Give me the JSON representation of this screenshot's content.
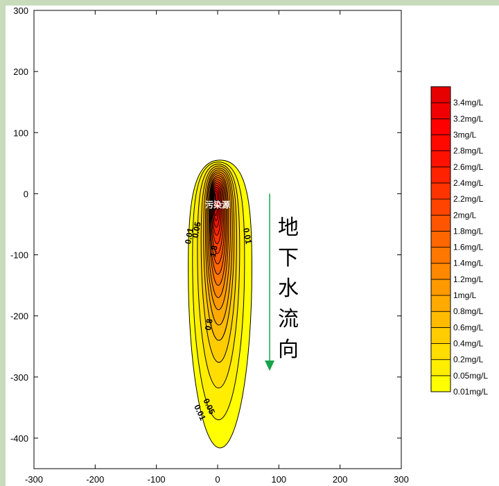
{
  "chart_data": {
    "type": "contour",
    "x_ticks": [
      -300,
      -200,
      -100,
      0,
      100,
      200,
      300
    ],
    "y_ticks": [
      300,
      200,
      100,
      0,
      -100,
      -200,
      -300,
      -400
    ],
    "xlim": [
      -300,
      300
    ],
    "ylim": [
      -450,
      300
    ],
    "source_label": "污染源",
    "source_point": [
      0,
      -18
    ],
    "flow_label": [
      "地",
      "下",
      "水",
      "流",
      "向"
    ],
    "flow_arrow": {
      "x": 85,
      "from_y": 0,
      "to_y": -290
    },
    "contour_labels": [
      {
        "text": "0.01",
        "x": -42,
        "y": -70,
        "angle": -80
      },
      {
        "text": "0.05",
        "x": -30,
        "y": -60,
        "angle": -80
      },
      {
        "text": "0.01",
        "x": 44,
        "y": -70,
        "angle": 80
      },
      {
        "text": "1.8",
        "x": -2,
        "y": -95,
        "angle": -80
      },
      {
        "text": "0.8",
        "x": -10,
        "y": -215,
        "angle": -80
      },
      {
        "text": "0.05",
        "x": -18,
        "y": -350,
        "angle": 65
      },
      {
        "text": "0.01",
        "x": -33,
        "y": -360,
        "angle": 65
      }
    ],
    "levels": [
      {
        "label": "0.01mg/L",
        "value": 0.01,
        "color": "#ffff00",
        "ext": [
          -48,
          56,
          -416
        ]
      },
      {
        "label": "0.05mg/L",
        "value": 0.05,
        "color": "#ffee00",
        "ext": [
          -41,
          44,
          -370
        ]
      },
      {
        "label": "0.2mg/L",
        "value": 0.2,
        "color": "#ffdd00",
        "ext": [
          -33,
          36,
          -318
        ]
      },
      {
        "label": "0.4mg/L",
        "value": 0.4,
        "color": "#ffcc00",
        "ext": [
          -27,
          31,
          -276
        ]
      },
      {
        "label": "0.6mg/L",
        "value": 0.6,
        "color": "#ffbb00",
        "ext": [
          -23,
          27,
          -240
        ]
      },
      {
        "label": "0.8mg/L",
        "value": 0.8,
        "color": "#ffaa00",
        "ext": [
          -20,
          24,
          -215
        ]
      },
      {
        "label": "1mg/L",
        "value": 1,
        "color": "#ff9900",
        "ext": [
          -18,
          21,
          -190
        ]
      },
      {
        "label": "1.2mg/L",
        "value": 1.2,
        "color": "#ff8800",
        "ext": [
          -16,
          18,
          -170
        ]
      },
      {
        "label": "1.4mg/L",
        "value": 1.4,
        "color": "#ff7700",
        "ext": [
          -14,
          16,
          -150
        ]
      },
      {
        "label": "1.6mg/L",
        "value": 1.6,
        "color": "#ff6600",
        "ext": [
          -13,
          14,
          -132
        ]
      },
      {
        "label": "1.8mg/L",
        "value": 1.8,
        "color": "#ff5500",
        "ext": [
          -12,
          12,
          -115
        ]
      },
      {
        "label": "2mg/L",
        "value": 2,
        "color": "#ff4400",
        "ext": [
          -11,
          10,
          -98
        ]
      },
      {
        "label": "2.2mg/L",
        "value": 2.2,
        "color": "#ff3300",
        "ext": [
          -10,
          8,
          -82
        ]
      },
      {
        "label": "2.4mg/L",
        "value": 2.4,
        "color": "#ff2200",
        "ext": [
          -9,
          6,
          -68
        ]
      },
      {
        "label": "2.6mg/L",
        "value": 2.6,
        "color": "#ff1100",
        "ext": [
          -8,
          4,
          -55
        ]
      },
      {
        "label": "2.8mg/L",
        "value": 2.8,
        "color": "#ff0800",
        "ext": [
          -7,
          2,
          -44
        ]
      },
      {
        "label": "3mg/L",
        "value": 3,
        "color": "#ff0000",
        "ext": [
          -6,
          0,
          -36
        ]
      },
      {
        "label": "3.2mg/L",
        "value": 3.2,
        "color": "#f00000",
        "ext": [
          -5,
          -3,
          -28
        ]
      },
      {
        "label": "3.4mg/L",
        "value": 3.4,
        "color": "#e60000",
        "ext": [
          -4,
          -6,
          -22
        ]
      }
    ],
    "colors": {
      "arrow": "#16a34a",
      "outline": "#000000",
      "background": "#ffffff"
    }
  }
}
